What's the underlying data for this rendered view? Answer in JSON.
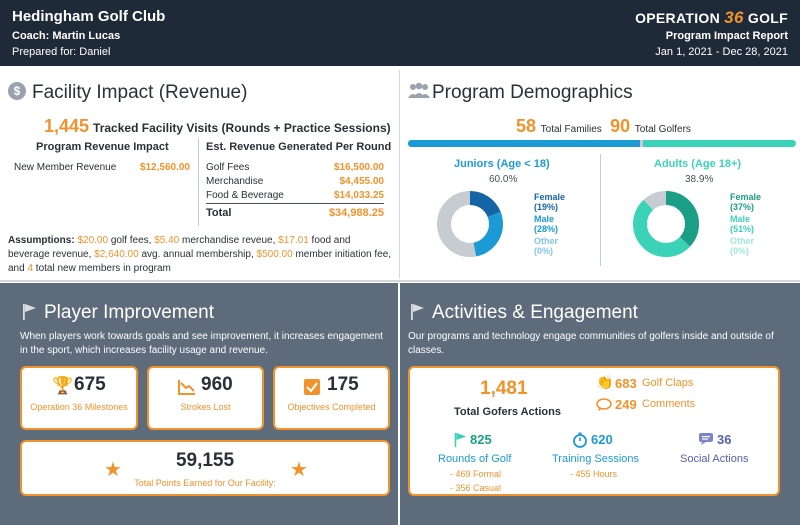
{
  "header": {
    "club_name": "Hedingham Golf Club",
    "coach": "Coach: Martin Lucas",
    "prepared_for": "Prepared for: Daniel",
    "logo_left": "OPERATION",
    "logo_num": "36",
    "logo_right": "GOLF",
    "report_title": "Program Impact Report",
    "date_range": "Jan 1, 2021 - Dec 28, 2021"
  },
  "facility": {
    "title": "Facility Impact (Revenue)",
    "visits_count": "1,445",
    "visits_label": "Tracked Facility Visits (Rounds + Practice Sessions)",
    "program_revenue_heading": "Program Revenue Impact",
    "program_rows": [
      {
        "label": "New Member Revenue",
        "value": "$12,560.00"
      }
    ],
    "est_heading": "Est. Revenue Generated Per Round",
    "est_rows": [
      {
        "label": "Golf Fees",
        "value": "$16,500.00"
      },
      {
        "label": "Merchandise",
        "value": "$4,455.00"
      },
      {
        "label": "Food & Beverage",
        "value": "$14,033.25"
      }
    ],
    "total_label": "Total",
    "total_value": "$34,988.25",
    "assumptions": {
      "label": "Assumptions:",
      "golf_fees": "$20.00",
      "t1": " golf fees, ",
      "merch": "$5.40",
      "t2": " merchandise reveue, ",
      "food": "$17.01",
      "t3": " food and beverage revenue, ",
      "membership": "$2,640.00",
      "t4": " avg. annual membership, ",
      "initiation": "$500.00",
      "t5": " member initiation fee, and ",
      "new_members": "4",
      "t6": " total new members in program"
    }
  },
  "demographics": {
    "title": "Program Demographics",
    "families_count": "58",
    "families_label": "Total Families",
    "golfers_count": "90",
    "golfers_label": "Total Golfers",
    "juniors_share": 0.6,
    "juniors": {
      "title": "Juniors (Age < 18)",
      "pct": "60.0%",
      "female": "Female",
      "female_pct": "(19%)",
      "male": "Male",
      "male_pct": "(28%)",
      "other": "Other",
      "other_pct": "(0%)",
      "shares": {
        "female": 0.19,
        "male": 0.28,
        "unknown": 0.53
      }
    },
    "adults": {
      "title": "Adults (Age 18+)",
      "pct": "38.9%",
      "female": "Female",
      "female_pct": "(37%)",
      "male": "Male",
      "male_pct": "(51%)",
      "other": "Other",
      "other_pct": "(0%)",
      "shares": {
        "female": 0.37,
        "male": 0.51,
        "unknown": 0.12
      }
    },
    "colors": {
      "juniors": "#1b9ad6",
      "adults": "#3bd3b7",
      "female_junior": "#1565a6",
      "female_adult": "#1a9e85",
      "unknown": "#c7ccd2"
    }
  },
  "player": {
    "title": "Player Improvement",
    "desc": "When players work towards goals and see improvement, it increases engagement in the sport, which increases facility usage and revenue.",
    "milestones_value": "675",
    "milestones_label": "Operation 36 Milestones",
    "strokes_value": "960",
    "strokes_label": "Strokes Lost",
    "objectives_value": "175",
    "objectives_label": "Objectives Completed",
    "points_value": "59,155",
    "points_label": "Total Points Earned for Our Facility:"
  },
  "activities": {
    "title": "Activities & Engagement",
    "desc": "Our programs and technology engage communities of golfers inside and outside of classes.",
    "actions_value": "1,481",
    "actions_label": "Total Gofers Actions",
    "claps_value": "683",
    "claps_label": "Golf Claps",
    "comments_value": "249",
    "comments_label": "Comments",
    "rounds_value": "825",
    "rounds_label": "Rounds of Golf",
    "rounds_formal": "- 469 Formal",
    "rounds_casual": "- 356 Casual",
    "training_value": "620",
    "training_label": "Training Sessions",
    "training_hours": "- 455 Hours",
    "social_value": "36",
    "social_label": "Social Actions"
  },
  "icons": {
    "facility": "dollar-icon",
    "demographics": "people-icon",
    "player": "flag-icon",
    "activities": "flag-icon",
    "milestones": "trophy-icon",
    "strokes": "chart-down-icon",
    "objectives": "checkbox-icon",
    "points": "star-icon",
    "claps": "clap-icon",
    "comments": "speech-bubble-icon",
    "rounds": "flag-icon",
    "training": "stopwatch-icon",
    "social": "chat-icon"
  }
}
